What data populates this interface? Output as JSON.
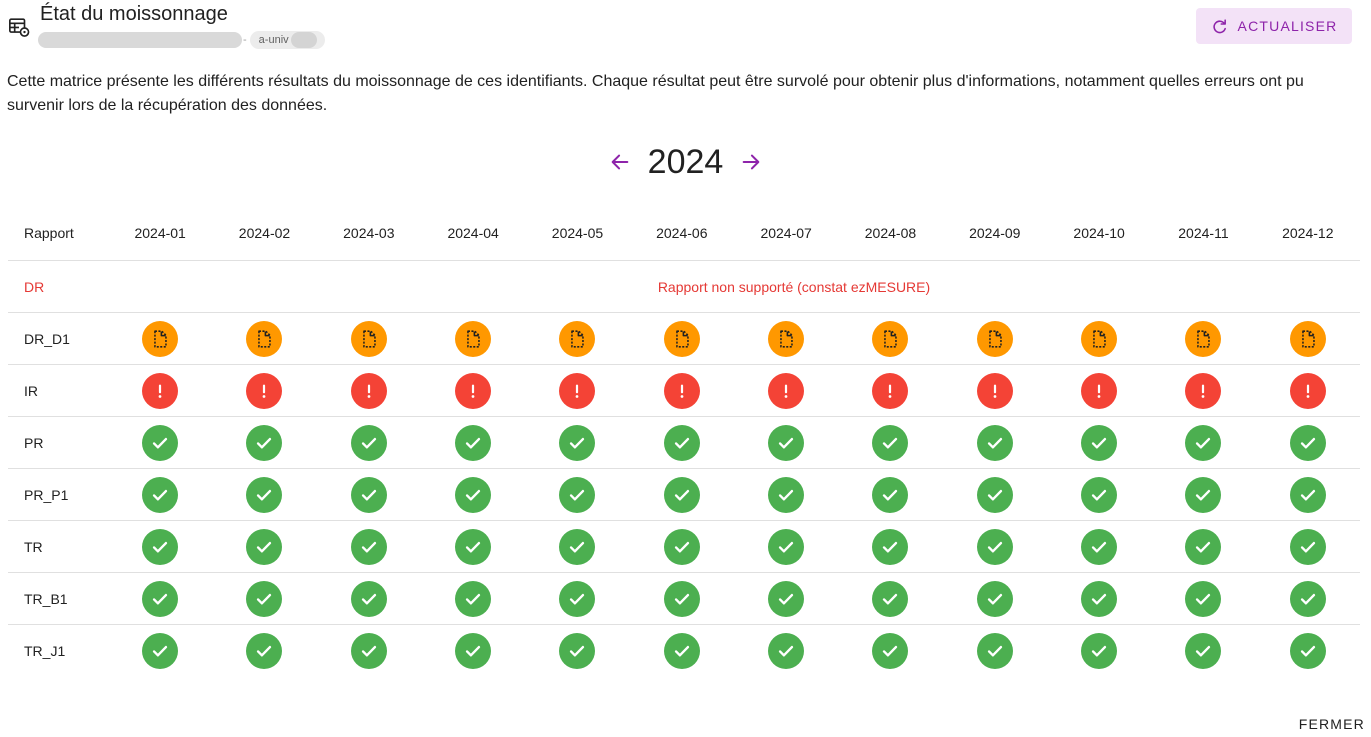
{
  "header": {
    "icon": "table-settings-icon",
    "title": "État du moissonnage",
    "subtitle_separator": "-",
    "subtitle_chip": "a-univ",
    "refresh_label": "ACTUALISER",
    "refresh_icon": "refresh-icon"
  },
  "description": "Cette matrice présente les différents résultats du moissonnage de ces identifiants. Chaque résultat peut être survolé pour obtenir plus d'informations, notamment quelles erreurs ont pu survenir lors de la récupération des données.",
  "year_nav": {
    "year": "2024",
    "prev_icon": "arrow-left-icon",
    "next_icon": "arrow-right-icon"
  },
  "table": {
    "report_header": "Rapport",
    "months": [
      "2024-01",
      "2024-02",
      "2024-03",
      "2024-04",
      "2024-05",
      "2024-06",
      "2024-07",
      "2024-08",
      "2024-09",
      "2024-10",
      "2024-11",
      "2024-12"
    ],
    "rows": [
      {
        "report": "DR",
        "unsupported": true,
        "message": "Rapport non supporté (constat ezMESURE)"
      },
      {
        "report": "DR_D1",
        "status": "partial"
      },
      {
        "report": "IR",
        "status": "error"
      },
      {
        "report": "PR",
        "status": "success"
      },
      {
        "report": "PR_P1",
        "status": "success"
      },
      {
        "report": "TR",
        "status": "success"
      },
      {
        "report": "TR_B1",
        "status": "success"
      },
      {
        "report": "TR_J1",
        "status": "success"
      }
    ]
  },
  "status_icons": {
    "success": "check-icon",
    "error": "exclamation-icon",
    "partial": "file-dashed-icon"
  },
  "colors": {
    "success": "#4caf50",
    "error": "#f44336",
    "partial": "#ff9800",
    "accent": "#8e24aa",
    "unsupported_text": "#e53935"
  },
  "footer": {
    "close_label": "FERMER"
  }
}
